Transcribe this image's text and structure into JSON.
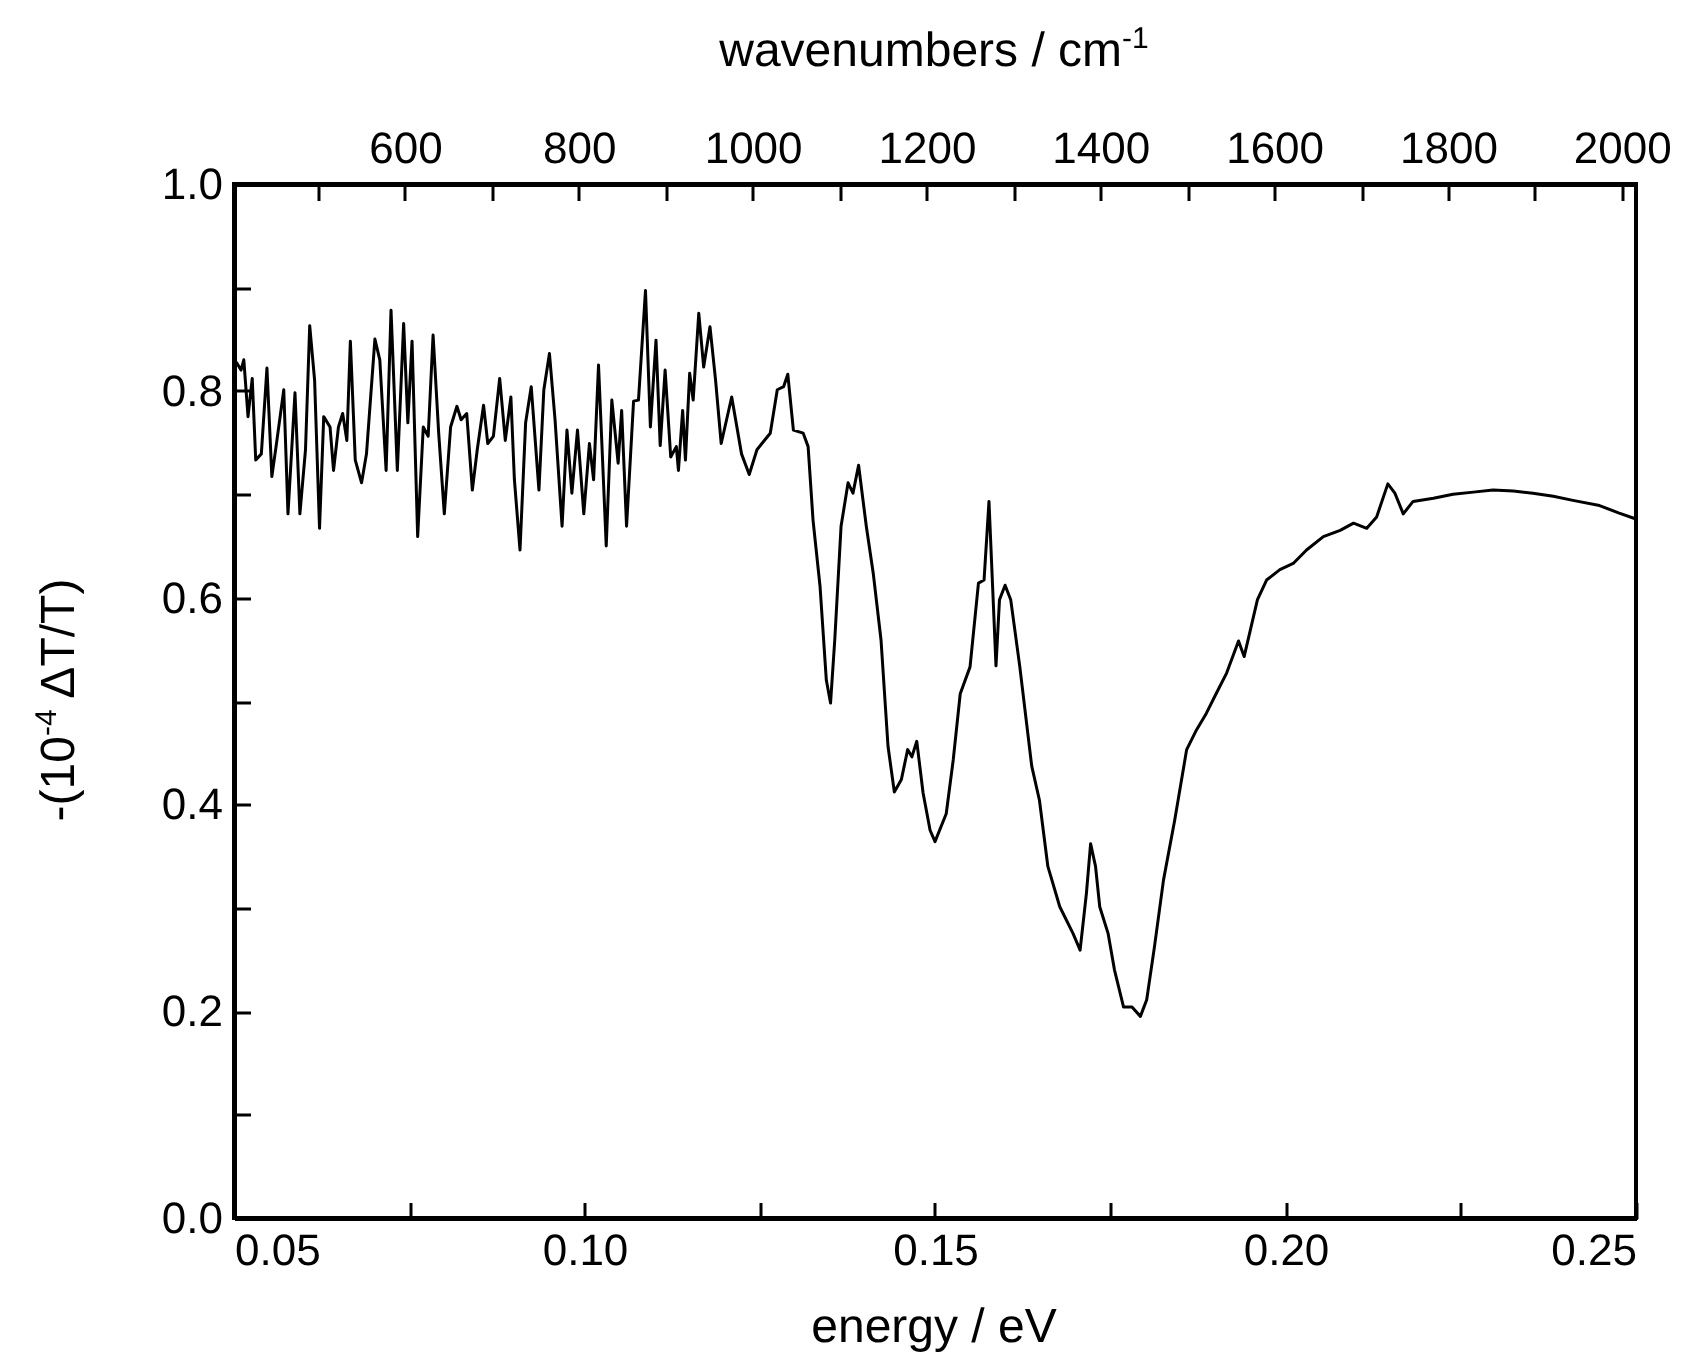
{
  "chart_data": {
    "type": "line",
    "xlabel": "energy / eV",
    "ylabel": "-(10$^{-4}$ ΔT/T)",
    "x2label": "wavenumbers / cm$^{-1}$",
    "xlim": [
      0.05,
      0.25
    ],
    "xticks": [
      0.05,
      {
        "value": 0.075,
        "label": null
      },
      {
        "value": 0.1,
        "label": "0.10"
      },
      {
        "value": 0.125,
        "label": null
      },
      0.15,
      {
        "value": 0.175,
        "label": null
      },
      {
        "value": 0.2,
        "label": "0.20"
      },
      {
        "value": 0.225,
        "label": null
      },
      0.25
    ],
    "ylim": [
      0,
      1
    ],
    "yticks": [
      {
        "value": 0,
        "label": "0.0"
      },
      {
        "value": 0.1,
        "label": null
      },
      0.2,
      {
        "value": 0.3,
        "label": null
      },
      0.4,
      {
        "value": 0.5,
        "label": null
      },
      0.6,
      {
        "value": 0.7,
        "label": null
      },
      0.8,
      {
        "value": 0.9,
        "label": null
      },
      {
        "value": 1,
        "label": "1.0"
      }
    ],
    "x2lim": [
      403.3,
      2016.4
    ],
    "x2ticks": [
      {
        "value": 500,
        "label": null
      },
      600,
      {
        "value": 700,
        "label": null
      },
      800,
      {
        "value": 900,
        "label": null
      },
      1000,
      {
        "value": 1100,
        "label": null
      },
      1200,
      {
        "value": 1300,
        "label": null
      },
      1400,
      {
        "value": 1500,
        "label": null
      },
      1600,
      {
        "value": 1700,
        "label": null
      },
      1800,
      {
        "value": 1900,
        "label": null
      },
      2000
    ],
    "series": [
      {
        "color": "#000000",
        "x": [
          0.0504,
          0.051,
          0.0514,
          0.052,
          0.0526,
          0.0531,
          0.0539,
          0.0547,
          0.0554,
          0.056,
          0.0571,
          0.0577,
          0.0587,
          0.0594,
          0.0602,
          0.0608,
          0.0615,
          0.0622,
          0.0628,
          0.0637,
          0.0642,
          0.0649,
          0.0655,
          0.0661,
          0.0666,
          0.0673,
          0.0682,
          0.0689,
          0.0701,
          0.0708,
          0.0717,
          0.0724,
          0.0733,
          0.0742,
          0.0748,
          0.0754,
          0.0762,
          0.077,
          0.0777,
          0.0784,
          0.0792,
          0.08,
          0.0809,
          0.0818,
          0.0824,
          0.0832,
          0.084,
          0.0847,
          0.0856,
          0.0862,
          0.087,
          0.0879,
          0.0887,
          0.0895,
          0.09,
          0.0908,
          0.0916,
          0.0924,
          0.0935,
          0.0942,
          0.095,
          0.0958,
          0.0968,
          0.0975,
          0.0982,
          0.099,
          0.0999,
          0.1007,
          0.1013,
          0.102,
          0.1031,
          0.1039,
          0.1048,
          0.1053,
          0.106,
          0.107,
          0.1077,
          0.1087,
          0.1094,
          0.1102,
          0.1108,
          0.1115,
          0.1123,
          0.1131,
          0.1134,
          0.114,
          0.1144,
          0.115,
          0.1155,
          0.1163,
          0.117,
          0.1179,
          0.1187,
          0.1195,
          0.121,
          0.1224,
          0.1235,
          0.1246,
          0.1265,
          0.1275,
          0.1284,
          0.129,
          0.1298,
          0.1312,
          0.1319,
          0.1326,
          0.1336,
          0.1345,
          0.1351,
          0.1357,
          0.1366,
          0.1376,
          0.1383,
          0.1391,
          0.1402,
          0.1412,
          0.1423,
          0.1433,
          0.1442,
          0.1452,
          0.1461,
          0.1467,
          0.1474,
          0.1483,
          0.1493,
          0.15,
          0.1516,
          0.1526,
          0.1536,
          0.155,
          0.1562,
          0.157,
          0.1577,
          0.1587,
          0.1592,
          0.16,
          0.1608,
          0.1621,
          0.1638,
          0.1649,
          0.1661,
          0.1678,
          0.1697,
          0.1707,
          0.1716,
          0.1722,
          0.1729,
          0.1735,
          0.1747,
          0.1756,
          0.1769,
          0.1781,
          0.1793,
          0.1802,
          0.1813,
          0.1826,
          0.1842,
          0.1859,
          0.1873,
          0.1887,
          0.1901,
          0.1916,
          0.1933,
          0.1941,
          0.195,
          0.196,
          0.1973,
          0.1992,
          0.2011,
          0.203,
          0.2054,
          0.2078,
          0.2097,
          0.2116,
          0.213,
          0.2146,
          0.2156,
          0.2168,
          0.2182,
          0.2211,
          0.2239,
          0.2268,
          0.2296,
          0.2325,
          0.2353,
          0.2382,
          0.241,
          0.2448,
          0.2475,
          0.25
        ],
        "values": [
          0.827,
          0.82,
          0.83,
          0.775,
          0.812,
          0.733,
          0.739,
          0.822,
          0.717,
          0.746,
          0.801,
          0.681,
          0.798,
          0.681,
          0.743,
          0.863,
          0.81,
          0.667,
          0.775,
          0.765,
          0.723,
          0.765,
          0.778,
          0.752,
          0.848,
          0.733,
          0.711,
          0.739,
          0.85,
          0.83,
          0.723,
          0.878,
          0.723,
          0.865,
          0.769,
          0.848,
          0.659,
          0.765,
          0.756,
          0.854,
          0.759,
          0.681,
          0.765,
          0.785,
          0.772,
          0.778,
          0.704,
          0.743,
          0.786,
          0.749,
          0.756,
          0.812,
          0.752,
          0.794,
          0.714,
          0.646,
          0.769,
          0.804,
          0.704,
          0.801,
          0.836,
          0.772,
          0.669,
          0.762,
          0.701,
          0.762,
          0.681,
          0.749,
          0.714,
          0.825,
          0.65,
          0.791,
          0.73,
          0.781,
          0.669,
          0.79,
          0.791,
          0.897,
          0.765,
          0.849,
          0.747,
          0.82,
          0.736,
          0.746,
          0.723,
          0.781,
          0.733,
          0.817,
          0.791,
          0.875,
          0.823,
          0.862,
          0.81,
          0.749,
          0.794,
          0.739,
          0.719,
          0.743,
          0.759,
          0.801,
          0.804,
          0.816,
          0.762,
          0.759,
          0.746,
          0.675,
          0.611,
          0.52,
          0.498,
          0.559,
          0.669,
          0.711,
          0.701,
          0.728,
          0.669,
          0.623,
          0.559,
          0.456,
          0.412,
          0.424,
          0.453,
          0.446,
          0.461,
          0.411,
          0.375,
          0.364,
          0.391,
          0.443,
          0.507,
          0.533,
          0.614,
          0.617,
          0.693,
          0.534,
          0.598,
          0.612,
          0.598,
          0.533,
          0.437,
          0.404,
          0.34,
          0.301,
          0.275,
          0.259,
          0.314,
          0.362,
          0.34,
          0.301,
          0.275,
          0.24,
          0.204,
          0.204,
          0.195,
          0.211,
          0.262,
          0.327,
          0.385,
          0.453,
          0.472,
          0.488,
          0.507,
          0.527,
          0.558,
          0.543,
          0.569,
          0.598,
          0.617,
          0.627,
          0.633,
          0.646,
          0.659,
          0.665,
          0.672,
          0.667,
          0.678,
          0.71,
          0.701,
          0.681,
          0.693,
          0.696,
          0.7,
          0.702,
          0.704,
          0.703,
          0.701,
          0.698,
          0.694,
          0.689,
          0.682,
          0.676
        ]
      }
    ]
  }
}
